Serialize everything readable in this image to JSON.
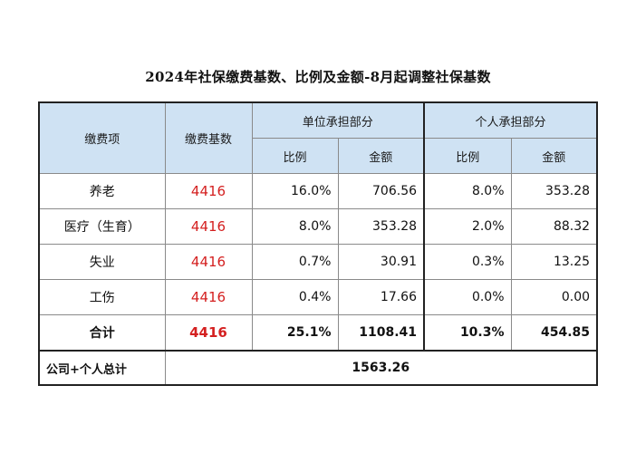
{
  "title": "2024年社保缴费基数、比例及金额-8月起调整社保基数",
  "header": {
    "item": "缴费项",
    "base": "缴费基数",
    "company_group": "单位承担部分",
    "personal_group": "个人承担部分",
    "ratio": "比例",
    "amount": "金额"
  },
  "rows": [
    {
      "name": "养老",
      "base": "4416",
      "company_ratio": "16.0%",
      "company_amount": "706.56",
      "personal_ratio": "8.0%",
      "personal_amount": "353.28"
    },
    {
      "name": "医疗（生育）",
      "base": "4416",
      "company_ratio": "8.0%",
      "company_amount": "353.28",
      "personal_ratio": "2.0%",
      "personal_amount": "88.32"
    },
    {
      "name": "失业",
      "base": "4416",
      "company_ratio": "0.7%",
      "company_amount": "30.91",
      "personal_ratio": "0.3%",
      "personal_amount": "13.25"
    },
    {
      "name": "工伤",
      "base": "4416",
      "company_ratio": "0.4%",
      "company_amount": "17.66",
      "personal_ratio": "0.0%",
      "personal_amount": "0.00"
    }
  ],
  "total": {
    "name": "合计",
    "base": "4416",
    "company_ratio": "25.1%",
    "company_amount": "1108.41",
    "personal_ratio": "10.3%",
    "personal_amount": "454.85"
  },
  "grand_total": {
    "label": "公司+个人总计",
    "value": "1563.26"
  },
  "colors": {
    "header_bg": "#cfe2f3",
    "base_text": "#d42020"
  }
}
